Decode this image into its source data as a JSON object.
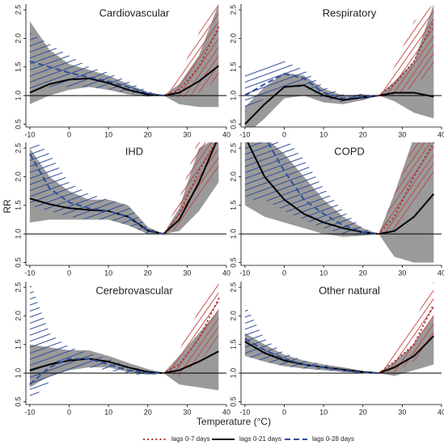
{
  "xlabel": "Temperature (°C)",
  "ylabel": "RR",
  "chart_data": [
    {
      "type": "line",
      "title": "Cardiovascular",
      "x": [
        -10,
        -5,
        0,
        5,
        10,
        15,
        20,
        24,
        28,
        33,
        38
      ],
      "xlim": [
        -11,
        40
      ],
      "ylim": [
        0.45,
        2.6
      ],
      "xticks": [
        -10,
        0,
        10,
        20,
        30,
        40
      ],
      "yticks": [
        0.5,
        {
          "value": 1,
          "label": "1.0"
        },
        1.5,
        {
          "value": 2,
          "label": "2.0"
        },
        2.5
      ],
      "series": [
        {
          "name": "lags 0-7 days",
          "color": "#b03030",
          "values": [
            null,
            null,
            null,
            null,
            null,
            null,
            null,
            1.0,
            1.1,
            1.5,
            2.2
          ],
          "lower": [
            null,
            null,
            null,
            null,
            null,
            null,
            null,
            1.0,
            0.95,
            1.05,
            1.3
          ],
          "upper": [
            null,
            null,
            null,
            null,
            null,
            null,
            null,
            1.0,
            1.35,
            2.1,
            2.6
          ]
        },
        {
          "name": "lags 0-21 days",
          "color": "#000000",
          "values": [
            1.05,
            1.2,
            1.28,
            1.3,
            1.22,
            1.1,
            1.02,
            1.0,
            1.05,
            1.25,
            1.52
          ],
          "lower": [
            0.85,
            1.0,
            1.1,
            1.15,
            1.1,
            1.02,
            0.98,
            1.0,
            0.85,
            0.8,
            0.8
          ],
          "upper": [
            2.3,
            1.8,
            1.55,
            1.45,
            1.35,
            1.2,
            1.06,
            1.0,
            1.2,
            1.7,
            2.6
          ]
        },
        {
          "name": "lags 0-28 days",
          "color": "#2f4f9a",
          "values": [
            1.6,
            1.5,
            1.4,
            1.32,
            1.25,
            1.15,
            1.04,
            1.0,
            null,
            null,
            null
          ],
          "lower": [
            1.1,
            1.15,
            1.15,
            1.15,
            1.1,
            1.05,
            1.0,
            1.0,
            null,
            null,
            null
          ],
          "upper": [
            2.1,
            1.9,
            1.7,
            1.5,
            1.4,
            1.25,
            1.08,
            1.0,
            null,
            null,
            null
          ]
        }
      ]
    },
    {
      "type": "line",
      "title": "Respiratory",
      "x": [
        -10,
        -5,
        0,
        5,
        10,
        15,
        20,
        24,
        28,
        33,
        38
      ],
      "xlim": [
        -11,
        40
      ],
      "ylim": [
        0.45,
        2.6
      ],
      "xticks": [
        -10,
        0,
        10,
        20,
        30,
        40
      ],
      "yticks": [
        0.5,
        {
          "value": 1,
          "label": "1.0"
        },
        1.5,
        {
          "value": 2,
          "label": "2.0"
        },
        2.5
      ],
      "series": [
        {
          "name": "lags 0-7 days",
          "color": "#b03030",
          "values": [
            null,
            null,
            null,
            null,
            null,
            null,
            null,
            1.0,
            1.2,
            1.6,
            2.3
          ],
          "lower": [
            null,
            null,
            null,
            null,
            null,
            null,
            null,
            1.0,
            1.0,
            1.15,
            1.5
          ],
          "upper": [
            null,
            null,
            null,
            null,
            null,
            null,
            null,
            1.0,
            1.5,
            2.3,
            2.6
          ]
        },
        {
          "name": "lags 0-21 days",
          "color": "#000000",
          "values": [
            0.5,
            0.85,
            1.15,
            1.18,
            1.0,
            0.92,
            0.97,
            1.0,
            1.05,
            1.05,
            0.98
          ],
          "lower": [
            0.3,
            0.6,
            0.95,
            1.0,
            0.88,
            0.85,
            0.92,
            1.0,
            0.9,
            0.7,
            0.6
          ],
          "upper": [
            0.8,
            1.15,
            1.4,
            1.35,
            1.12,
            1.0,
            1.02,
            1.0,
            1.25,
            1.6,
            2.6
          ]
        },
        {
          "name": "lags 0-28 days",
          "color": "#2f4f9a",
          "values": [
            1.0,
            1.2,
            1.38,
            1.3,
            1.05,
            0.95,
            0.98,
            1.0,
            null,
            null,
            null
          ],
          "lower": [
            0.7,
            0.95,
            1.15,
            1.15,
            0.95,
            0.88,
            0.93,
            1.0,
            null,
            null,
            null
          ],
          "upper": [
            1.4,
            1.5,
            1.6,
            1.45,
            1.15,
            1.02,
            1.03,
            1.0,
            null,
            null,
            null
          ]
        }
      ]
    },
    {
      "type": "line",
      "title": "IHD",
      "x": [
        -10,
        -5,
        0,
        5,
        10,
        15,
        20,
        24,
        28,
        33,
        38
      ],
      "xlim": [
        -11,
        40
      ],
      "ylim": [
        0.45,
        2.6
      ],
      "xticks": [
        -10,
        0,
        10,
        20,
        30,
        40
      ],
      "yticks": [
        0.5,
        {
          "value": 1,
          "label": "1.0"
        },
        1.5,
        {
          "value": 2,
          "label": "2.0"
        },
        2.5
      ],
      "series": [
        {
          "name": "lags 0-7 days",
          "color": "#b03030",
          "values": [
            null,
            null,
            null,
            null,
            null,
            null,
            null,
            1.0,
            1.35,
            2.1,
            2.7
          ],
          "lower": [
            null,
            null,
            null,
            null,
            null,
            null,
            null,
            1.0,
            1.1,
            1.6,
            2.1
          ],
          "upper": [
            null,
            null,
            null,
            null,
            null,
            null,
            null,
            1.0,
            1.6,
            2.7,
            2.7
          ]
        },
        {
          "name": "lags 0-21 days",
          "color": "#000000",
          "values": [
            1.62,
            1.52,
            1.45,
            1.42,
            1.4,
            1.3,
            1.06,
            1.0,
            1.25,
            1.9,
            2.7
          ],
          "lower": [
            1.2,
            1.25,
            1.25,
            1.25,
            1.25,
            1.15,
            1.0,
            1.0,
            1.05,
            1.4,
            1.9
          ],
          "upper": [
            2.5,
            2.0,
            1.75,
            1.6,
            1.6,
            1.5,
            1.12,
            1.0,
            1.45,
            2.5,
            2.7
          ]
        },
        {
          "name": "lags 0-28 days",
          "color": "#2f4f9a",
          "values": [
            2.4,
            1.8,
            1.55,
            1.45,
            1.4,
            1.3,
            1.05,
            1.0,
            null,
            null,
            null
          ],
          "lower": [
            1.5,
            1.4,
            1.3,
            1.25,
            1.25,
            1.15,
            1.0,
            1.0,
            null,
            null,
            null
          ],
          "upper": [
            2.7,
            2.4,
            1.9,
            1.7,
            1.6,
            1.5,
            1.12,
            1.0,
            null,
            null,
            null
          ]
        }
      ]
    },
    {
      "type": "line",
      "title": "COPD",
      "x": [
        -10,
        -5,
        0,
        5,
        10,
        15,
        20,
        24,
        28,
        33,
        38
      ],
      "xlim": [
        -11,
        40
      ],
      "ylim": [
        0.45,
        2.6
      ],
      "xticks": [
        -10,
        0,
        10,
        20,
        30,
        40
      ],
      "yticks": [
        0.5,
        {
          "value": 1,
          "label": "1.0"
        },
        1.5,
        {
          "value": 2,
          "label": "2.0"
        },
        2.5
      ],
      "series": [
        {
          "name": "lags 0-7 days",
          "color": "#b03030",
          "values": [
            null,
            null,
            null,
            null,
            null,
            null,
            null,
            1.0,
            1.3,
            2.0,
            2.6
          ],
          "lower": [
            null,
            null,
            null,
            null,
            null,
            null,
            null,
            1.0,
            1.05,
            1.5,
            2.0
          ],
          "upper": [
            null,
            null,
            null,
            null,
            null,
            null,
            null,
            1.0,
            1.7,
            2.6,
            2.7
          ]
        },
        {
          "name": "lags 0-21 days",
          "color": "#000000",
          "values": [
            2.7,
            2.0,
            1.6,
            1.35,
            1.2,
            1.1,
            1.03,
            1.0,
            1.05,
            1.3,
            1.7
          ],
          "lower": [
            1.5,
            1.3,
            1.2,
            1.1,
            1.0,
            0.95,
            0.97,
            1.0,
            0.6,
            0.5,
            0.5
          ],
          "upper": [
            2.7,
            2.7,
            2.4,
            2.0,
            1.6,
            1.3,
            1.1,
            1.0,
            1.7,
            2.7,
            2.7
          ]
        },
        {
          "name": "lags 0-28 days",
          "color": "#2f4f9a",
          "values": [
            2.7,
            2.7,
            2.1,
            1.6,
            1.35,
            1.15,
            1.03,
            1.0,
            null,
            null,
            null
          ],
          "lower": [
            1.6,
            1.6,
            1.4,
            1.25,
            1.1,
            1.0,
            0.97,
            1.0,
            null,
            null,
            null
          ],
          "upper": [
            2.7,
            2.7,
            2.7,
            2.3,
            1.8,
            1.4,
            1.1,
            1.0,
            null,
            null,
            null
          ]
        }
      ]
    },
    {
      "type": "line",
      "title": "Cerebrovascular",
      "x": [
        -10,
        -5,
        0,
        5,
        10,
        15,
        20,
        24,
        28,
        33,
        38
      ],
      "xlim": [
        -11,
        40
      ],
      "ylim": [
        0.45,
        2.6
      ],
      "xticks": [
        -10,
        0,
        10,
        20,
        30,
        40
      ],
      "yticks": [
        0.5,
        {
          "value": 1,
          "label": "1.0"
        },
        1.5,
        {
          "value": 2,
          "label": "2.0"
        },
        2.5
      ],
      "series": [
        {
          "name": "lags 0-7 days",
          "color": "#b03030",
          "values": [
            null,
            null,
            null,
            null,
            null,
            null,
            null,
            1.0,
            1.15,
            1.6,
            2.3
          ],
          "lower": [
            null,
            null,
            null,
            null,
            null,
            null,
            null,
            1.0,
            0.95,
            1.2,
            1.6
          ],
          "upper": [
            null,
            null,
            null,
            null,
            null,
            null,
            null,
            1.0,
            1.4,
            2.1,
            2.6
          ]
        },
        {
          "name": "lags 0-21 days",
          "color": "#000000",
          "values": [
            1.05,
            1.15,
            1.22,
            1.25,
            1.2,
            1.1,
            1.02,
            1.0,
            1.05,
            1.2,
            1.38
          ],
          "lower": [
            0.75,
            0.95,
            1.05,
            1.1,
            1.1,
            1.02,
            0.97,
            1.0,
            0.8,
            0.75,
            0.7
          ],
          "upper": [
            1.5,
            1.45,
            1.4,
            1.4,
            1.3,
            1.18,
            1.07,
            1.0,
            1.3,
            1.7,
            2.1
          ]
        },
        {
          "name": "lags 0-28 days",
          "color": "#2f4f9a",
          "values": [
            0.8,
            1.1,
            1.25,
            1.25,
            1.15,
            1.05,
            1.0,
            1.0,
            null,
            null,
            null
          ],
          "lower": [
            0.5,
            0.85,
            1.05,
            1.1,
            1.05,
            0.98,
            0.96,
            1.0,
            null,
            null,
            null
          ],
          "upper": [
            2.6,
            1.7,
            1.45,
            1.35,
            1.25,
            1.12,
            1.05,
            1.0,
            null,
            null,
            null
          ]
        }
      ]
    },
    {
      "type": "line",
      "title": "Other natural",
      "x": [
        -10,
        -5,
        0,
        5,
        10,
        15,
        20,
        24,
        28,
        33,
        38
      ],
      "xlim": [
        -11,
        40
      ],
      "ylim": [
        0.45,
        2.6
      ],
      "xticks": [
        -10,
        0,
        10,
        20,
        30,
        40
      ],
      "yticks": [
        0.5,
        {
          "value": 1,
          "label": "1.0"
        },
        1.5,
        {
          "value": 2,
          "label": "2.0"
        },
        2.5
      ],
      "series": [
        {
          "name": "lags 0-7 days",
          "color": "#b03030",
          "values": [
            null,
            null,
            null,
            null,
            null,
            null,
            null,
            1.0,
            1.2,
            1.5,
            2.2
          ],
          "lower": [
            null,
            null,
            null,
            null,
            null,
            null,
            null,
            1.0,
            1.02,
            1.2,
            1.6
          ],
          "upper": [
            null,
            null,
            null,
            null,
            null,
            null,
            null,
            1.0,
            1.4,
            1.9,
            2.6
          ]
        },
        {
          "name": "lags 0-21 days",
          "color": "#000000",
          "values": [
            1.55,
            1.35,
            1.22,
            1.15,
            1.1,
            1.06,
            1.02,
            1.0,
            1.1,
            1.3,
            1.65
          ],
          "lower": [
            1.3,
            1.2,
            1.12,
            1.08,
            1.05,
            1.02,
            1.0,
            1.0,
            0.95,
            1.05,
            1.15
          ],
          "upper": [
            1.7,
            1.5,
            1.32,
            1.22,
            1.15,
            1.1,
            1.04,
            1.0,
            1.2,
            1.5,
            2.0
          ]
        },
        {
          "name": "lags 0-28 days",
          "color": "#2f4f9a",
          "values": [
            1.6,
            1.4,
            1.25,
            1.15,
            1.1,
            1.05,
            1.01,
            1.0,
            null,
            null,
            null
          ],
          "lower": [
            1.3,
            1.2,
            1.12,
            1.08,
            1.05,
            1.02,
            0.99,
            1.0,
            null,
            null,
            null
          ],
          "upper": [
            2.2,
            1.6,
            1.35,
            1.22,
            1.15,
            1.08,
            1.03,
            1.0,
            null,
            null,
            null
          ]
        }
      ]
    }
  ]
}
